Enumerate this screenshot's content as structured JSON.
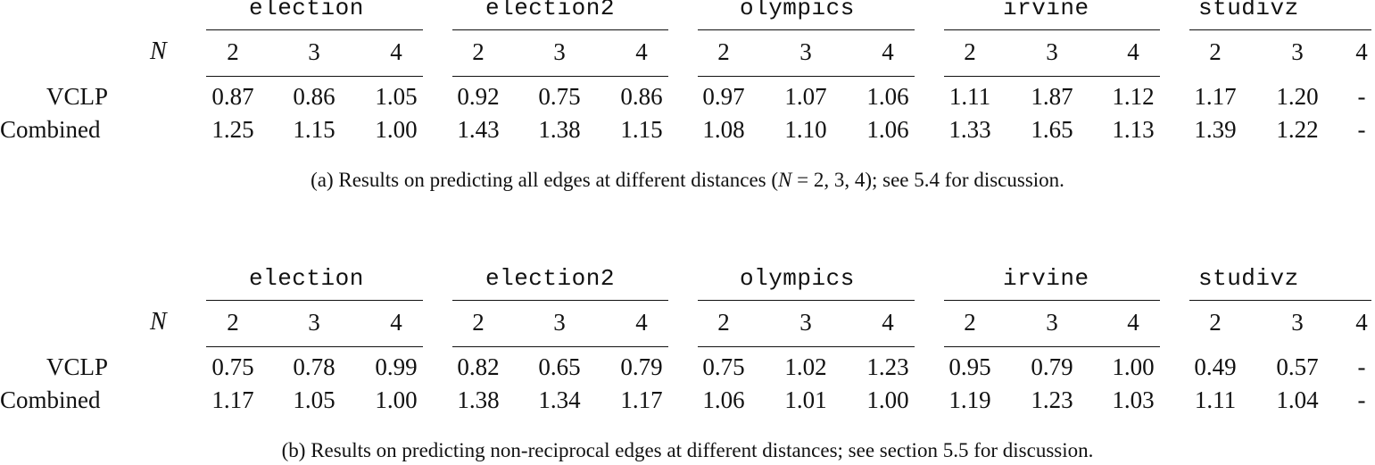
{
  "datasets": [
    "election",
    "election2",
    "olympics",
    "irvine",
    "studivz"
  ],
  "n_label": "N",
  "n_values": [
    "2",
    "3",
    "4"
  ],
  "table_a": {
    "rows": [
      {
        "label": "VCLP",
        "values": [
          "0.87",
          "0.86",
          "1.05",
          "0.92",
          "0.75",
          "0.86",
          "0.97",
          "1.07",
          "1.06",
          "1.11",
          "1.87",
          "1.12",
          "1.17",
          "1.20",
          "-"
        ]
      },
      {
        "label": "Combined",
        "values": [
          "1.25",
          "1.15",
          "1.00",
          "1.43",
          "1.38",
          "1.15",
          "1.08",
          "1.10",
          "1.06",
          "1.33",
          "1.65",
          "1.13",
          "1.39",
          "1.22",
          "-"
        ]
      }
    ],
    "caption_prefix": "(a) Results on predicting all edges at different distances (",
    "caption_math_n": "N",
    "caption_math_rest": " = 2, 3, 4",
    "caption_suffix": "); see 5.4 for discussion."
  },
  "table_b": {
    "rows": [
      {
        "label": "VCLP",
        "values": [
          "0.75",
          "0.78",
          "0.99",
          "0.82",
          "0.65",
          "0.79",
          "0.75",
          "1.02",
          "1.23",
          "0.95",
          "0.79",
          "1.00",
          "0.49",
          "0.57",
          "-"
        ]
      },
      {
        "label": "Combined",
        "values": [
          "1.17",
          "1.05",
          "1.00",
          "1.38",
          "1.34",
          "1.17",
          "1.06",
          "1.01",
          "1.00",
          "1.19",
          "1.23",
          "1.03",
          "1.11",
          "1.04",
          "-"
        ]
      }
    ],
    "caption": "(b) Results on predicting non-reciprocal edges at different distances; see section 5.5 for discussion."
  }
}
